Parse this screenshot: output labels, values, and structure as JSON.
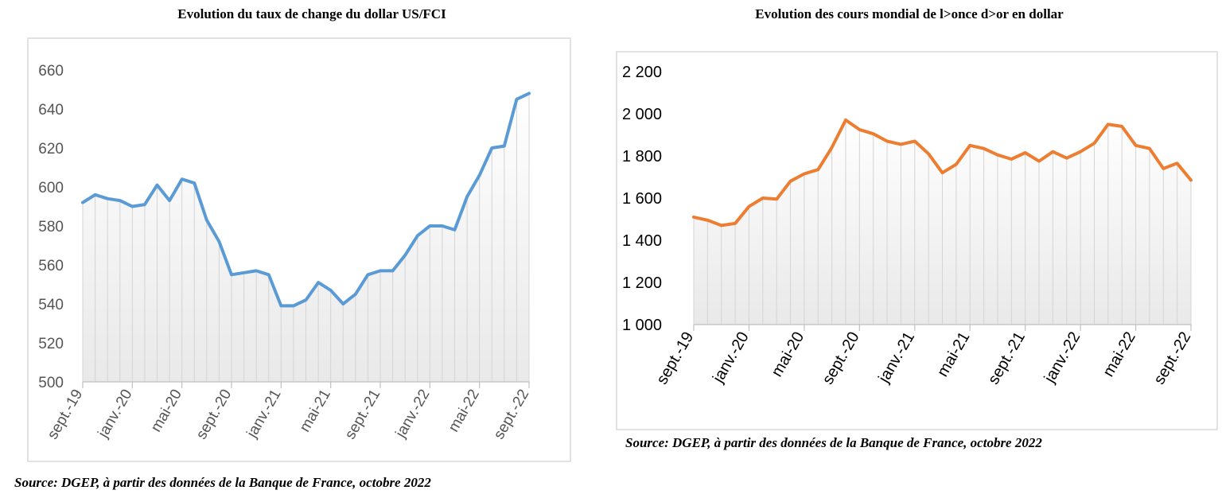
{
  "chart_data": [
    {
      "type": "area",
      "title": "Evolution du taux de change du dollar US/FCI",
      "source": "Source: DGEP, à partir des données de la Banque de France, octobre 2022",
      "color": "#5b9bd5",
      "ylim": [
        500,
        660
      ],
      "yticks": [
        "500",
        "520",
        "540",
        "560",
        "580",
        "600",
        "620",
        "640",
        "660"
      ],
      "xtick_labels": [
        "sept.-19",
        "janv.-20",
        "mai-20",
        "sept.-20",
        "janv.-21",
        "mai-21",
        "sept.-21",
        "janv.-22",
        "mai-22",
        "sept.-22"
      ],
      "x": [
        "sept.-19",
        "oct.-19",
        "nov.-19",
        "déc.-19",
        "janv.-20",
        "févr.-20",
        "mars-20",
        "avr.-20",
        "mai-20",
        "juin-20",
        "juil.-20",
        "août-20",
        "sept.-20",
        "oct.-20",
        "nov.-20",
        "déc.-20",
        "janv.-21",
        "févr.-21",
        "mars-21",
        "avr.-21",
        "mai-21",
        "juin-21",
        "juil.-21",
        "août-21",
        "sept.-21",
        "oct.-21",
        "nov.-21",
        "déc.-21",
        "janv.-22",
        "févr.-22",
        "mars-22",
        "avr.-22",
        "mai-22",
        "juin-22",
        "juil.-22",
        "août-22",
        "sept.-22"
      ],
      "values": [
        592,
        596,
        594,
        593,
        590,
        591,
        601,
        593,
        604,
        602,
        583,
        572,
        555,
        556,
        557,
        555,
        539,
        539,
        542,
        551,
        547,
        540,
        545,
        555,
        557,
        557,
        565,
        575,
        580,
        580,
        578,
        595,
        606,
        620,
        621,
        645,
        648
      ],
      "grid": false
    },
    {
      "type": "area",
      "title": "Evolution des cours mondial de l>once d>or en dollar",
      "source": "Source: DGEP, à partir des données de la Banque de France, octobre 2022",
      "color": "#ed7d31",
      "ylim": [
        1000,
        2200
      ],
      "yticks": [
        "1 000",
        "1 200",
        "1 400",
        "1 600",
        "1 800",
        "2 000",
        "2 200"
      ],
      "xtick_labels": [
        "sept.-19",
        "janv.-20",
        "mai-20",
        "sept.-20",
        "janv.-21",
        "mai-21",
        "sept.-21",
        "janv.-22",
        "mai-22",
        "sept.-22"
      ],
      "x": [
        "sept.-19",
        "oct.-19",
        "nov.-19",
        "déc.-19",
        "janv.-20",
        "févr.-20",
        "mars-20",
        "avr.-20",
        "mai-20",
        "juin-20",
        "juil.-20",
        "août-20",
        "sept.-20",
        "oct.-20",
        "nov.-20",
        "déc.-20",
        "janv.-21",
        "févr.-21",
        "mars-21",
        "avr.-21",
        "mai-21",
        "juin-21",
        "juil.-21",
        "août-21",
        "sept.-21",
        "oct.-21",
        "nov.-21",
        "déc.-21",
        "janv.-22",
        "févr.-22",
        "mars-22",
        "avr.-22",
        "mai-22",
        "juin-22",
        "juil.-22",
        "août-22",
        "sept.-22"
      ],
      "values": [
        1510,
        1495,
        1470,
        1480,
        1560,
        1600,
        1595,
        1680,
        1715,
        1735,
        1840,
        1970,
        1925,
        1905,
        1870,
        1855,
        1870,
        1810,
        1720,
        1760,
        1850,
        1835,
        1805,
        1785,
        1815,
        1775,
        1820,
        1790,
        1820,
        1860,
        1950,
        1940,
        1850,
        1835,
        1740,
        1765,
        1685
      ],
      "grid": false
    }
  ]
}
